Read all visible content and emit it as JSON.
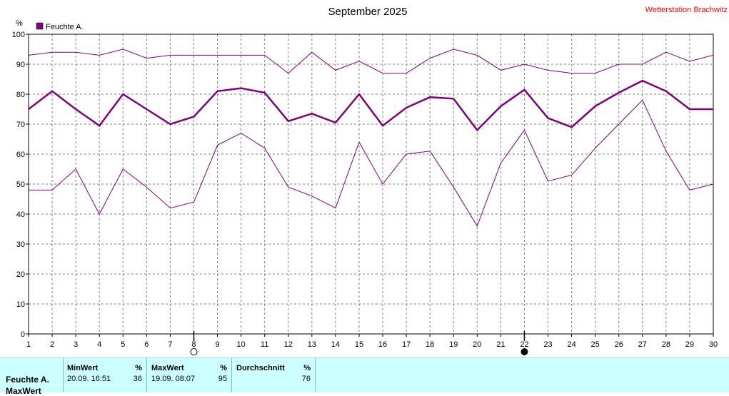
{
  "header": {
    "title": "September 2025",
    "station": "Wetterstation Brachwitz"
  },
  "chart_data": {
    "type": "line",
    "ylabel": "%",
    "ylim": [
      0,
      100
    ],
    "yticks": [
      0,
      10,
      20,
      30,
      40,
      50,
      60,
      70,
      80,
      90,
      100
    ],
    "x": [
      1,
      2,
      3,
      4,
      5,
      6,
      7,
      8,
      9,
      10,
      11,
      12,
      13,
      14,
      15,
      16,
      17,
      18,
      19,
      20,
      21,
      22,
      23,
      24,
      25,
      26,
      27,
      28,
      29,
      30
    ],
    "xlim": [
      1,
      30
    ],
    "grid": true,
    "legend": {
      "position": "top-left",
      "entries": [
        "Feuchte A."
      ]
    },
    "series": [
      {
        "name": "Feuchte A.",
        "role": "max",
        "values": [
          93,
          94,
          94,
          93,
          95,
          92,
          93,
          93,
          93,
          93,
          93,
          87,
          94,
          88,
          91,
          87,
          87,
          92,
          95,
          93,
          88,
          90,
          88,
          87,
          87,
          90,
          90,
          94,
          91,
          93
        ]
      },
      {
        "name": "Feuchte A.",
        "role": "avg",
        "values": [
          75,
          81,
          75,
          69.5,
          80,
          75,
          70,
          72.5,
          81,
          82,
          80.5,
          71,
          73.5,
          70.5,
          80,
          69.5,
          75.5,
          79,
          78.5,
          68,
          76,
          81.5,
          72,
          69,
          76,
          80.5,
          84.5,
          81,
          75,
          75
        ]
      },
      {
        "name": "Feuchte A.",
        "role": "min",
        "values": [
          48,
          48,
          55,
          40,
          55,
          49,
          42,
          44,
          63,
          67,
          62,
          49,
          46,
          42,
          64,
          50,
          60,
          61,
          49,
          36,
          57,
          68,
          51,
          53,
          62,
          70,
          78,
          61,
          48,
          50
        ]
      }
    ],
    "markers": [
      {
        "x": 8,
        "symbol": "open-circle"
      },
      {
        "x": 22,
        "symbol": "filled-circle"
      }
    ],
    "colors": {
      "line": "#800080",
      "legend_box": "#800080",
      "grid": "#808080",
      "station": "#ff0000"
    }
  },
  "summary": {
    "row_label": "Feuchte A.",
    "row_label_2": "MaxWert",
    "columns": [
      {
        "header": "MinWert",
        "unit": "%",
        "time": "20.09.  16:51",
        "value": "36"
      },
      {
        "header": "MaxWert",
        "unit": "%",
        "time": "19.09.  08:07",
        "value": "95"
      },
      {
        "header": "Durchschnitt",
        "unit": "%",
        "time": "",
        "value": "76"
      }
    ],
    "background": "#ccffff"
  }
}
